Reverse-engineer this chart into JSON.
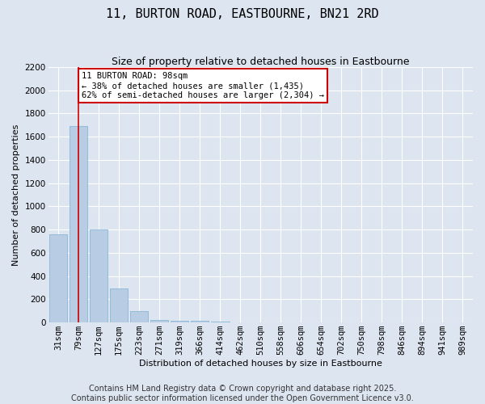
{
  "title": "11, BURTON ROAD, EASTBOURNE, BN21 2RD",
  "subtitle": "Size of property relative to detached houses in Eastbourne",
  "xlabel": "Distribution of detached houses by size in Eastbourne",
  "ylabel": "Number of detached properties",
  "categories": [
    "31sqm",
    "79sqm",
    "127sqm",
    "175sqm",
    "223sqm",
    "271sqm",
    "319sqm",
    "366sqm",
    "414sqm",
    "462sqm",
    "510sqm",
    "558sqm",
    "606sqm",
    "654sqm",
    "702sqm",
    "750sqm",
    "798sqm",
    "846sqm",
    "894sqm",
    "941sqm",
    "989sqm"
  ],
  "values": [
    760,
    1690,
    800,
    295,
    100,
    25,
    18,
    12,
    5,
    2,
    3,
    0,
    0,
    0,
    0,
    0,
    0,
    0,
    0,
    0,
    0
  ],
  "bar_color": "#b8cce4",
  "bar_edge_color": "#7bafd4",
  "vline_x": 1.0,
  "vline_color": "#cc0000",
  "annotation_line1": "11 BURTON ROAD: 98sqm",
  "annotation_line2": "← 38% of detached houses are smaller (1,435)",
  "annotation_line3": "62% of semi-detached houses are larger (2,304) →",
  "annotation_box_color": "#ffffff",
  "annotation_box_edge": "#cc0000",
  "ylim": [
    0,
    2200
  ],
  "yticks": [
    0,
    200,
    400,
    600,
    800,
    1000,
    1200,
    1400,
    1600,
    1800,
    2000,
    2200
  ],
  "footer_line1": "Contains HM Land Registry data © Crown copyright and database right 2025.",
  "footer_line2": "Contains public sector information licensed under the Open Government Licence v3.0.",
  "bg_color": "#dde5f0",
  "plot_bg_color": "#dde5f0",
  "grid_color": "#ffffff",
  "title_fontsize": 11,
  "subtitle_fontsize": 9,
  "axis_label_fontsize": 8,
  "tick_fontsize": 7.5,
  "annotation_fontsize": 7.5,
  "footer_fontsize": 7
}
